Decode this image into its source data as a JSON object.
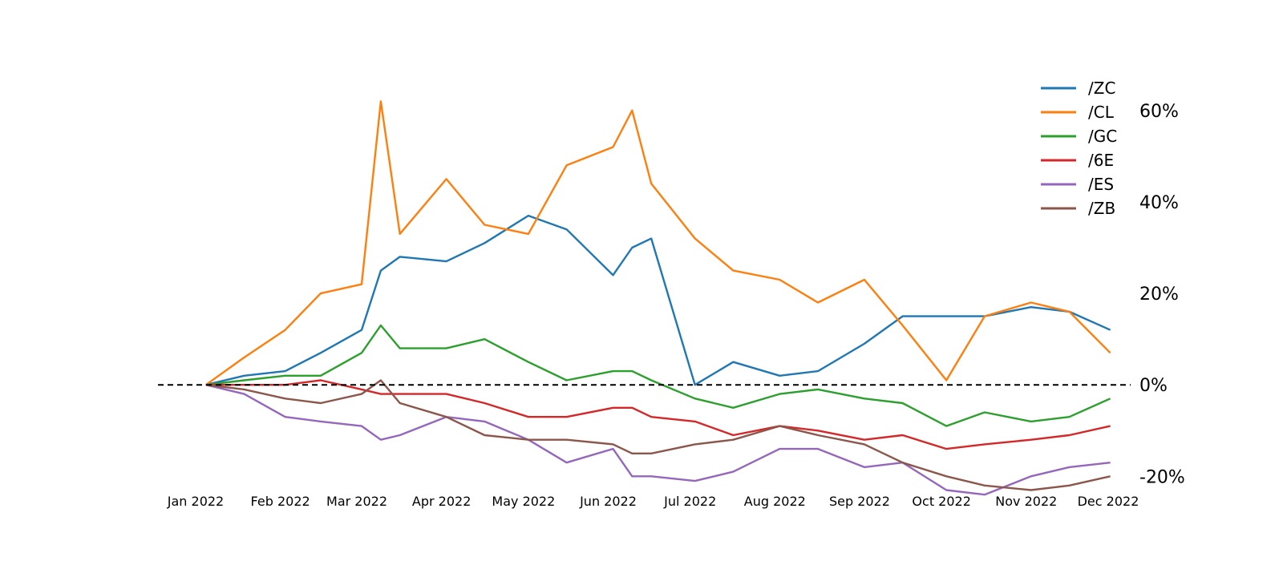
{
  "chart_data": {
    "type": "line",
    "title": "",
    "xlabel": "",
    "ylabel": "",
    "x_ticks": [
      "Jan 2022",
      "Feb 2022",
      "Mar 2022",
      "Apr 2022",
      "May 2022",
      "Jun 2022",
      "Jul 2022",
      "Aug 2022",
      "Sep 2022",
      "Oct 2022",
      "Nov 2022",
      "Dec 2022"
    ],
    "y_ticks": [
      "60%",
      "40%",
      "20%",
      "0%",
      "-20%"
    ],
    "y_tick_values": [
      60,
      40,
      20,
      0,
      -20
    ],
    "ylim": [
      -28,
      64
    ],
    "xlim": [
      "2022-01-01",
      "2022-12-01"
    ],
    "y_axis_side": "right",
    "y_unit": "%",
    "reference_line": {
      "y": 0,
      "style": "dashed",
      "color": "#000000"
    },
    "grid": false,
    "legend_position": "top-right",
    "x": [
      "2022-01-03",
      "2022-01-17",
      "2022-02-01",
      "2022-02-14",
      "2022-03-01",
      "2022-03-08",
      "2022-03-15",
      "2022-04-01",
      "2022-04-15",
      "2022-05-01",
      "2022-05-15",
      "2022-06-01",
      "2022-06-08",
      "2022-06-15",
      "2022-07-01",
      "2022-07-15",
      "2022-08-01",
      "2022-08-15",
      "2022-09-01",
      "2022-09-15",
      "2022-10-01",
      "2022-10-15",
      "2022-11-01",
      "2022-11-15",
      "2022-11-30"
    ],
    "series": [
      {
        "name": "/ZC",
        "color": "#1f77b4",
        "values": [
          0,
          2,
          3,
          7,
          12,
          25,
          28,
          27,
          31,
          37,
          34,
          24,
          30,
          32,
          0,
          5,
          2,
          3,
          9,
          15,
          15,
          15,
          17,
          16,
          12
        ]
      },
      {
        "name": "/CL",
        "color": "#ff7f0e",
        "values": [
          0,
          6,
          12,
          20,
          22,
          62,
          33,
          45,
          35,
          33,
          48,
          52,
          60,
          44,
          32,
          25,
          23,
          18,
          23,
          13,
          1,
          15,
          18,
          16,
          7
        ]
      },
      {
        "name": "/GC",
        "color": "#2ca02c",
        "values": [
          0,
          1,
          2,
          2,
          7,
          13,
          8,
          8,
          10,
          5,
          1,
          3,
          3,
          1,
          -3,
          -5,
          -2,
          -1,
          -3,
          -4,
          -9,
          -6,
          -8,
          -7,
          -3
        ]
      },
      {
        "name": "/6E",
        "color": "#d62728",
        "values": [
          0,
          0,
          0,
          1,
          -1,
          -2,
          -2,
          -2,
          -4,
          -7,
          -7,
          -5,
          -5,
          -7,
          -8,
          -11,
          -9,
          -10,
          -12,
          -11,
          -14,
          -13,
          -12,
          -11,
          -9
        ]
      },
      {
        "name": "/ES",
        "color": "#9467bd",
        "values": [
          0,
          -2,
          -7,
          -8,
          -9,
          -12,
          -11,
          -7,
          -8,
          -12,
          -17,
          -14,
          -20,
          -20,
          -21,
          -19,
          -14,
          -14,
          -18,
          -17,
          -23,
          -24,
          -20,
          -18,
          -17
        ]
      },
      {
        "name": "/ZB",
        "color": "#8c564b",
        "values": [
          0,
          -1,
          -3,
          -4,
          -2,
          1,
          -4,
          -7,
          -11,
          -12,
          -12,
          -13,
          -15,
          -15,
          -13,
          -12,
          -9,
          -11,
          -13,
          -17,
          -20,
          -22,
          -23,
          -22,
          -20
        ]
      }
    ]
  }
}
